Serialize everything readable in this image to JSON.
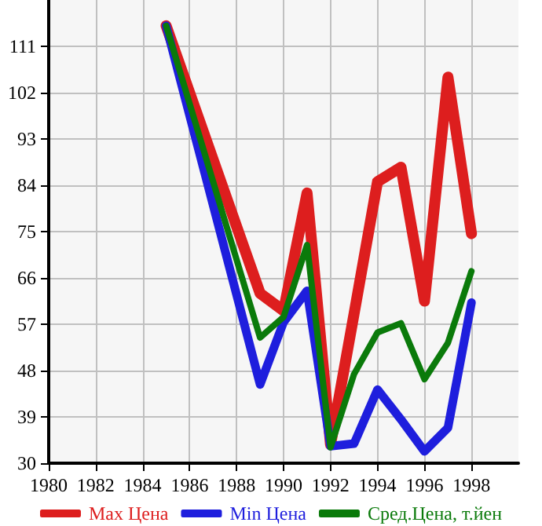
{
  "chart_data": {
    "type": "line",
    "x": [
      1985,
      1989,
      1990,
      1991,
      1992,
      1993,
      1994,
      1995,
      1996,
      1997,
      1998
    ],
    "series": [
      {
        "name": "Max Цена",
        "color": "#dd1e1e",
        "values": [
          115,
          63,
          59.6,
          82.5,
          33.6,
          59,
          84.7,
          87.5,
          61.5,
          105,
          74.6
        ]
      },
      {
        "name": "Min Цена",
        "color": "#1e1edd",
        "values": [
          115,
          45.3,
          57.4,
          63.5,
          33.3,
          33.8,
          44.3,
          38.5,
          32.3,
          36.9,
          61.2
        ]
      },
      {
        "name": "Сред.Цена, т.йен",
        "color": "#0a7a0a",
        "values": [
          115,
          54.4,
          58.4,
          72.4,
          33.1,
          47.3,
          55.4,
          57.2,
          46.3,
          53.4,
          67.3
        ]
      }
    ],
    "xlim": [
      1980,
      2000
    ],
    "xticks": [
      1980,
      1982,
      1984,
      1986,
      1988,
      1990,
      1992,
      1994,
      1996,
      1998
    ],
    "ylim": [
      30,
      120
    ],
    "yticks": [
      30,
      39,
      48,
      57,
      66,
      75,
      84,
      93,
      102,
      111
    ],
    "grid": true,
    "legend": "bottom",
    "marker": "none",
    "line_style": "solid"
  }
}
